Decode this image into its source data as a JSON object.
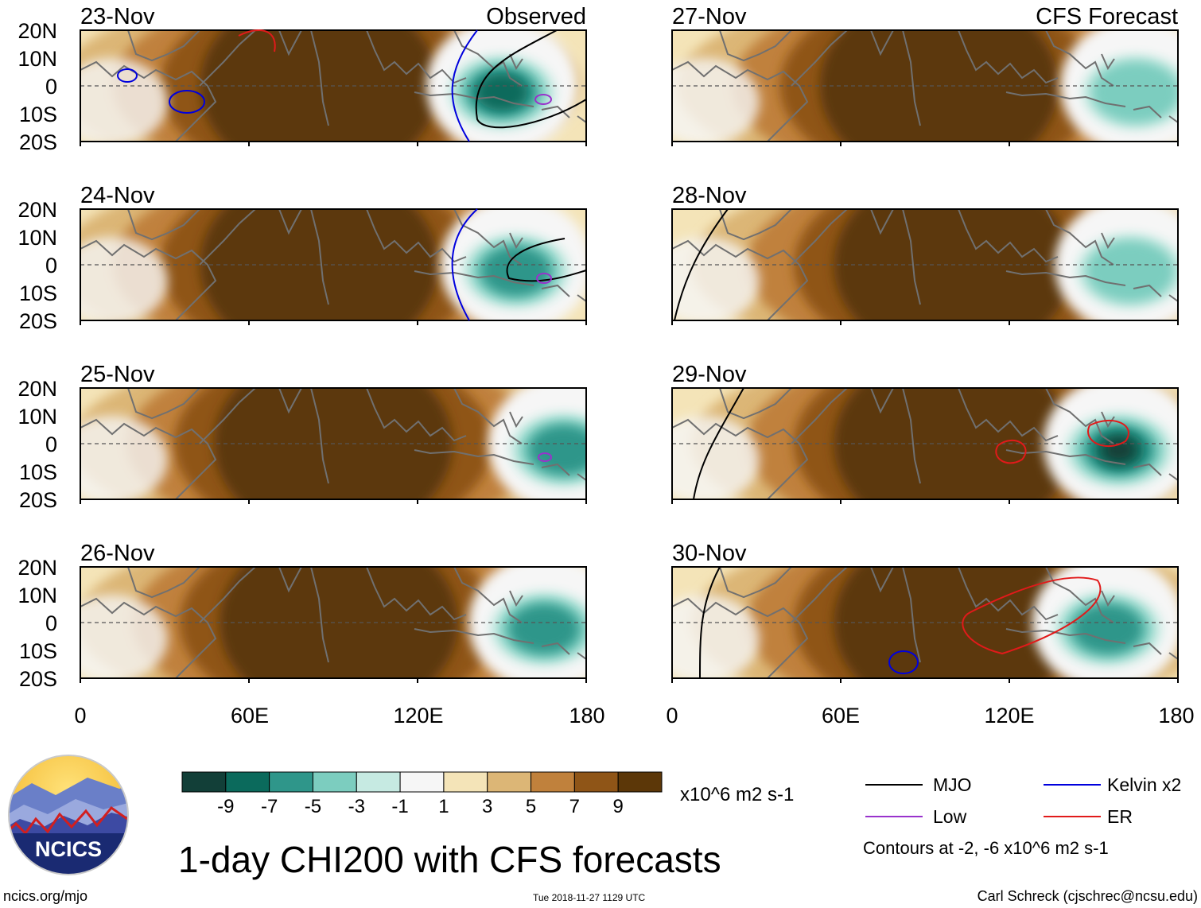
{
  "panels": {
    "observed": {
      "tag": "Observed",
      "dates": [
        "23-Nov",
        "24-Nov",
        "25-Nov",
        "26-Nov"
      ]
    },
    "forecast": {
      "tag": "CFS Forecast",
      "dates": [
        "27-Nov",
        "28-Nov",
        "29-Nov",
        "30-Nov"
      ]
    }
  },
  "axes": {
    "lat_labels": [
      "20N",
      "10N",
      "0",
      "10S",
      "20S"
    ],
    "lon_labels": [
      "0",
      "60E",
      "120E",
      "180"
    ],
    "lat_range": [
      -20,
      20
    ],
    "lon_range": [
      0,
      180
    ]
  },
  "colorbar": {
    "labels": [
      "-9",
      "-7",
      "-5",
      "-3",
      "-1",
      "1",
      "3",
      "5",
      "7",
      "9"
    ],
    "colors": [
      "#123f38",
      "#0b6a5c",
      "#2f968a",
      "#7ccdbf",
      "#c6eae2",
      "#f6f6f6",
      "#f4e4b8",
      "#dcb676",
      "#c0813c",
      "#8f5517",
      "#5c3708"
    ],
    "units": "x10^6 m2 s-1"
  },
  "legend": {
    "items": [
      {
        "label": "MJO",
        "color": "#000000"
      },
      {
        "label": "Kelvin x2",
        "color": "#0000dd"
      },
      {
        "label": "Low",
        "color": "#9932cc"
      },
      {
        "label": "ER",
        "color": "#e11a1a"
      }
    ],
    "note": "Contours at -2, -6 x10^6 m2 s-1"
  },
  "title": "1-day CHI200 with CFS forecasts",
  "logo": {
    "text": "NCICS"
  },
  "footer": {
    "url": "ncics.org/mjo",
    "timestamp": "Tue 2018-11-27 1129 UTC",
    "credit": "Carl Schreck (cjschrec@ncsu.edu)"
  },
  "chart_data": {
    "type": "heatmap",
    "variable": "CHI200 velocity potential anomaly",
    "units": "x10^6 m2 s-1",
    "levels": [
      -9,
      -7,
      -5,
      -3,
      -1,
      1,
      3,
      5,
      7,
      9
    ],
    "lat_range": [
      -20,
      20
    ],
    "lon_range": [
      0,
      180
    ],
    "panels": [
      {
        "date": "23-Nov",
        "source": "Observed",
        "max_center_lon": 85,
        "min_center_lon": 150,
        "max_value": 11,
        "min_value": -7
      },
      {
        "date": "24-Nov",
        "source": "Observed",
        "max_center_lon": 85,
        "min_center_lon": 155,
        "max_value": 11,
        "min_value": -5
      },
      {
        "date": "25-Nov",
        "source": "Observed",
        "max_center_lon": 90,
        "min_center_lon": 172,
        "max_value": 11,
        "min_value": -5
      },
      {
        "date": "26-Nov",
        "source": "Observed",
        "max_center_lon": 92,
        "min_center_lon": 165,
        "max_value": 11,
        "min_value": -5
      },
      {
        "date": "27-Nov",
        "source": "CFS Forecast",
        "max_center_lon": 95,
        "min_center_lon": 165,
        "max_value": 11,
        "min_value": -3
      },
      {
        "date": "28-Nov",
        "source": "CFS Forecast",
        "max_center_lon": 100,
        "min_center_lon": 163,
        "max_value": 11,
        "min_value": -3
      },
      {
        "date": "29-Nov",
        "source": "CFS Forecast",
        "max_center_lon": 100,
        "min_center_lon": 159,
        "max_value": 11,
        "min_value": -9
      },
      {
        "date": "30-Nov",
        "source": "CFS Forecast",
        "max_center_lon": 100,
        "min_center_lon": 155,
        "max_value": 11,
        "min_value": -5
      }
    ]
  }
}
